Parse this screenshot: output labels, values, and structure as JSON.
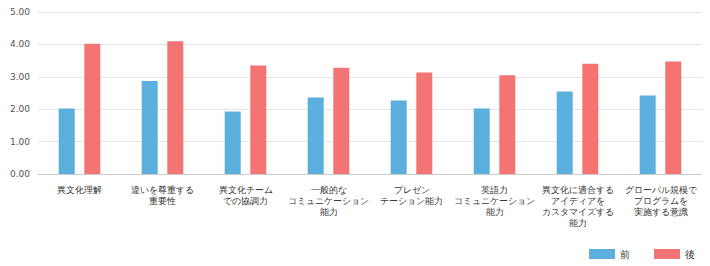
{
  "chart_data": {
    "type": "bar",
    "categories": [
      "異文化理解",
      "違いを尊重する\n重要性",
      "異文化チーム\nでの協調力",
      "一般的な\nコミュニケーション\n能力",
      "プレゼン\nテーション能力",
      "英語力\nコミュニケーション\n能力",
      "異文化に適合する\nアイディアを\nカスタマイズする\n能力",
      "グローバル規模で\nプログラムを\n実施する意識"
    ],
    "series": [
      {
        "name": "前",
        "color": "#5aafdc",
        "values": [
          2.02,
          2.87,
          1.93,
          2.36,
          2.27,
          2.02,
          2.55,
          2.42
        ]
      },
      {
        "name": "後",
        "color": "#f47474",
        "values": [
          4.02,
          4.1,
          3.35,
          3.28,
          3.13,
          3.05,
          3.4,
          3.47
        ]
      }
    ],
    "ylim": [
      0,
      5
    ],
    "yticks": [
      {
        "value": 0,
        "label": "0.00"
      },
      {
        "value": 1,
        "label": "1.00"
      },
      {
        "value": 2,
        "label": "2.00"
      },
      {
        "value": 3,
        "label": "3.00"
      },
      {
        "value": 4,
        "label": "4.00"
      },
      {
        "value": 5,
        "label": "5.00"
      }
    ],
    "grid": true,
    "legend": "bottom-right"
  }
}
